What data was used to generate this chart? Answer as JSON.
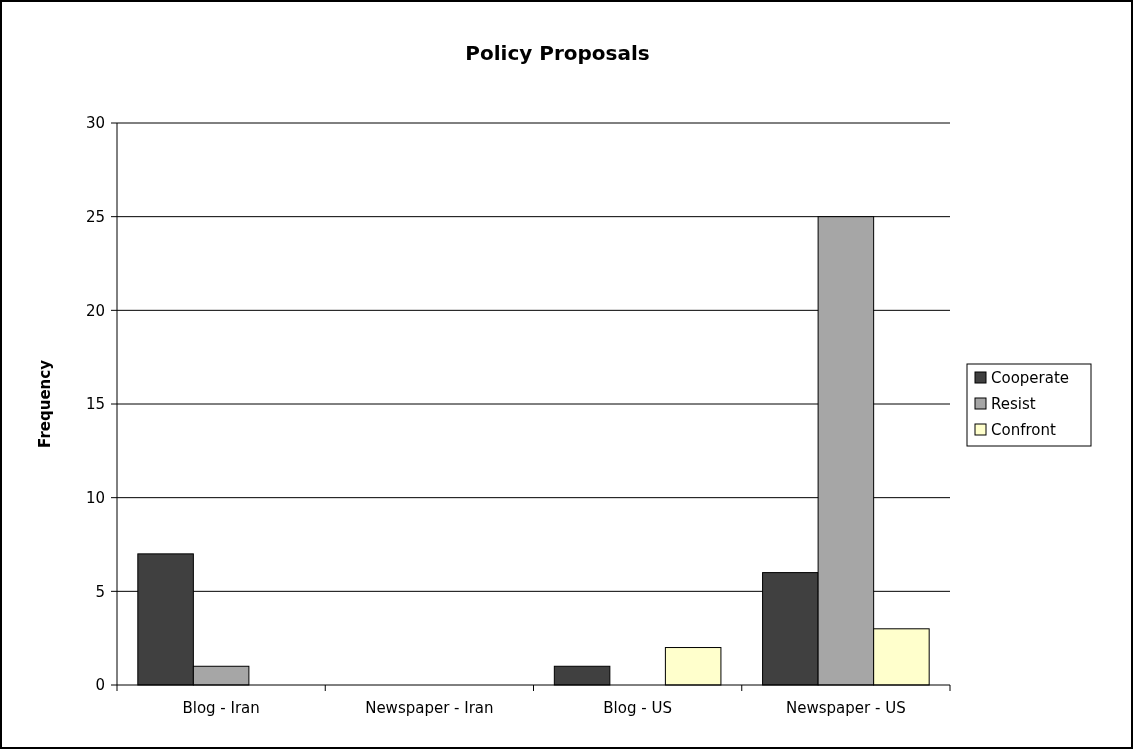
{
  "chart_data": {
    "type": "bar",
    "title": "Policy Proposals",
    "ylabel": "Frequency",
    "categories": [
      "Blog - Iran",
      "Newspaper - Iran",
      "Blog - US",
      "Newspaper - US"
    ],
    "series": [
      {
        "name": "Cooperate",
        "color": "#404040",
        "values": [
          7,
          0,
          1,
          6
        ]
      },
      {
        "name": "Resist",
        "color": "#a6a6a6",
        "values": [
          1,
          0,
          0,
          25
        ]
      },
      {
        "name": "Confront",
        "color": "#ffffcc",
        "values": [
          0,
          0,
          2,
          3
        ]
      }
    ],
    "ylim": [
      0,
      30
    ],
    "yticks": [
      0,
      5,
      10,
      15,
      20,
      25,
      30
    ],
    "grid": "y",
    "legend": "right"
  }
}
